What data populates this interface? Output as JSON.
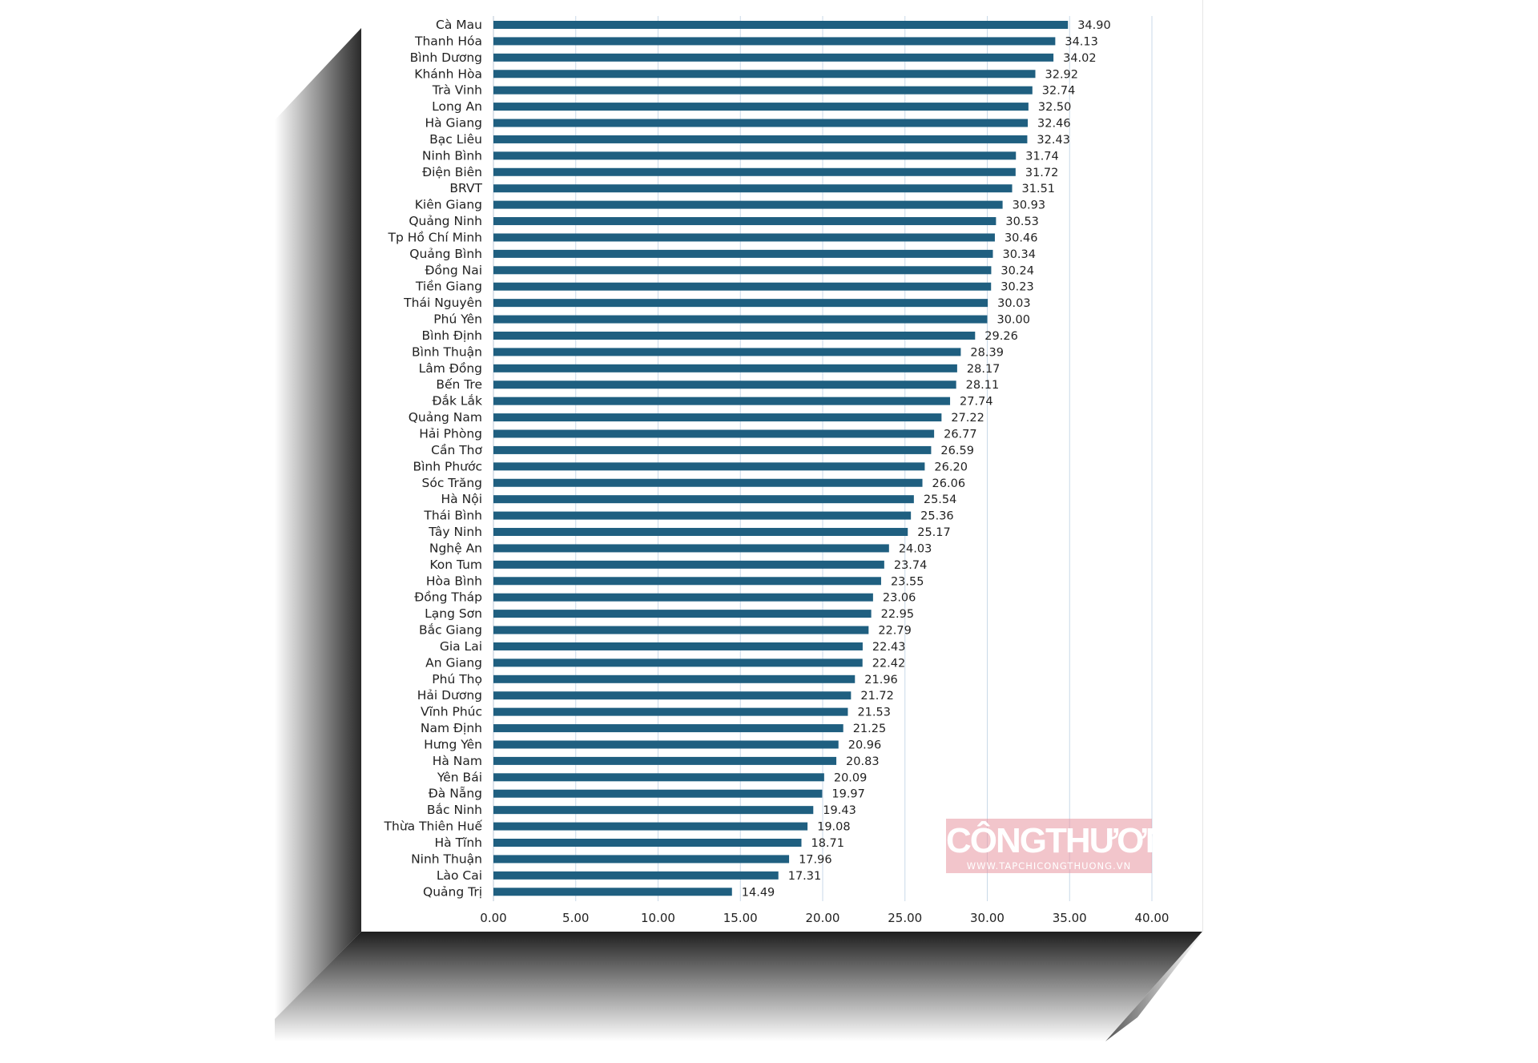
{
  "chart_data": {
    "type": "bar",
    "orientation": "horizontal",
    "categories": [
      "Cà Mau",
      "Thanh Hóa",
      "Bình Dương",
      "Khánh Hòa",
      "Trà Vinh",
      "Long An",
      "Hà Giang",
      "Bạc Liêu",
      "Ninh Bình",
      "Điện Biên",
      "BRVT",
      "Kiên Giang",
      "Quảng Ninh",
      "Tp Hồ Chí Minh",
      "Quảng Bình",
      "Đồng Nai",
      "Tiền Giang",
      "Thái Nguyên",
      "Phú Yên",
      "Bình Định",
      "Bình Thuận",
      "Lâm Đồng",
      "Bến Tre",
      "Đắk Lắk",
      "Quảng Nam",
      "Hải Phòng",
      "Cần Thơ",
      "Bình Phước",
      "Sóc Trăng",
      "Hà Nội",
      "Thái Bình",
      "Tây Ninh",
      "Nghệ An",
      "Kon Tum",
      "Hòa Bình",
      "Đồng Tháp",
      "Lạng Sơn",
      "Bắc Giang",
      "Gia Lai",
      "An Giang",
      "Phú Thọ",
      "Hải Dương",
      "Vĩnh Phúc",
      "Nam Định",
      "Hưng Yên",
      "Hà Nam",
      "Yên Bái",
      "Đà Nẵng",
      "Bắc Ninh",
      "Thừa Thiên Huế",
      "Hà Tĩnh",
      "Ninh Thuận",
      "Lào Cai",
      "Quảng Trị"
    ],
    "values": [
      34.9,
      34.13,
      34.02,
      32.92,
      32.74,
      32.5,
      32.46,
      32.43,
      31.74,
      31.72,
      31.51,
      30.93,
      30.53,
      30.46,
      30.34,
      30.24,
      30.23,
      30.03,
      30.0,
      29.26,
      28.39,
      28.17,
      28.11,
      27.74,
      27.22,
      26.77,
      26.59,
      26.2,
      26.06,
      25.54,
      25.36,
      25.17,
      24.03,
      23.74,
      23.55,
      23.06,
      22.95,
      22.79,
      22.43,
      22.42,
      21.96,
      21.72,
      21.53,
      21.25,
      20.96,
      20.83,
      20.09,
      19.97,
      19.43,
      19.08,
      18.71,
      17.96,
      17.31,
      14.49
    ],
    "value_labels": [
      "34.90",
      "34.13",
      "34.02",
      "32.92",
      "32.74",
      "32.50",
      "32.46",
      "32.43",
      "31.74",
      "31.72",
      "31.51",
      "30.93",
      "30.53",
      "30.46",
      "30.34",
      "30.24",
      "30.23",
      "30.03",
      "30.00",
      "29.26",
      "28.39",
      "28.17",
      "28.11",
      "27.74",
      "27.22",
      "26.77",
      "26.59",
      "26.20",
      "26.06",
      "25.54",
      "25.36",
      "25.17",
      "24.03",
      "23.74",
      "23.55",
      "23.06",
      "22.95",
      "22.79",
      "22.43",
      "22.42",
      "21.96",
      "21.72",
      "21.53",
      "21.25",
      "20.96",
      "20.83",
      "20.09",
      "19.97",
      "19.43",
      "19.08",
      "18.71",
      "17.96",
      "17.31",
      "14.49"
    ],
    "x_ticks": [
      "0.00",
      "5.00",
      "10.00",
      "15.00",
      "20.00",
      "25.00",
      "30.00",
      "35.00",
      "40.00"
    ],
    "xlim": [
      0,
      40
    ],
    "title": "",
    "xlabel": "",
    "ylabel": "",
    "grid": "vertical",
    "bar_color": "#1f5f80",
    "gridline_color": "#c9d9e8"
  },
  "watermark": {
    "brand": "CÔNGTHƯƠNG",
    "url": "WWW.TAPCHICONGTHUONG.VN",
    "color": "#e896a0"
  }
}
